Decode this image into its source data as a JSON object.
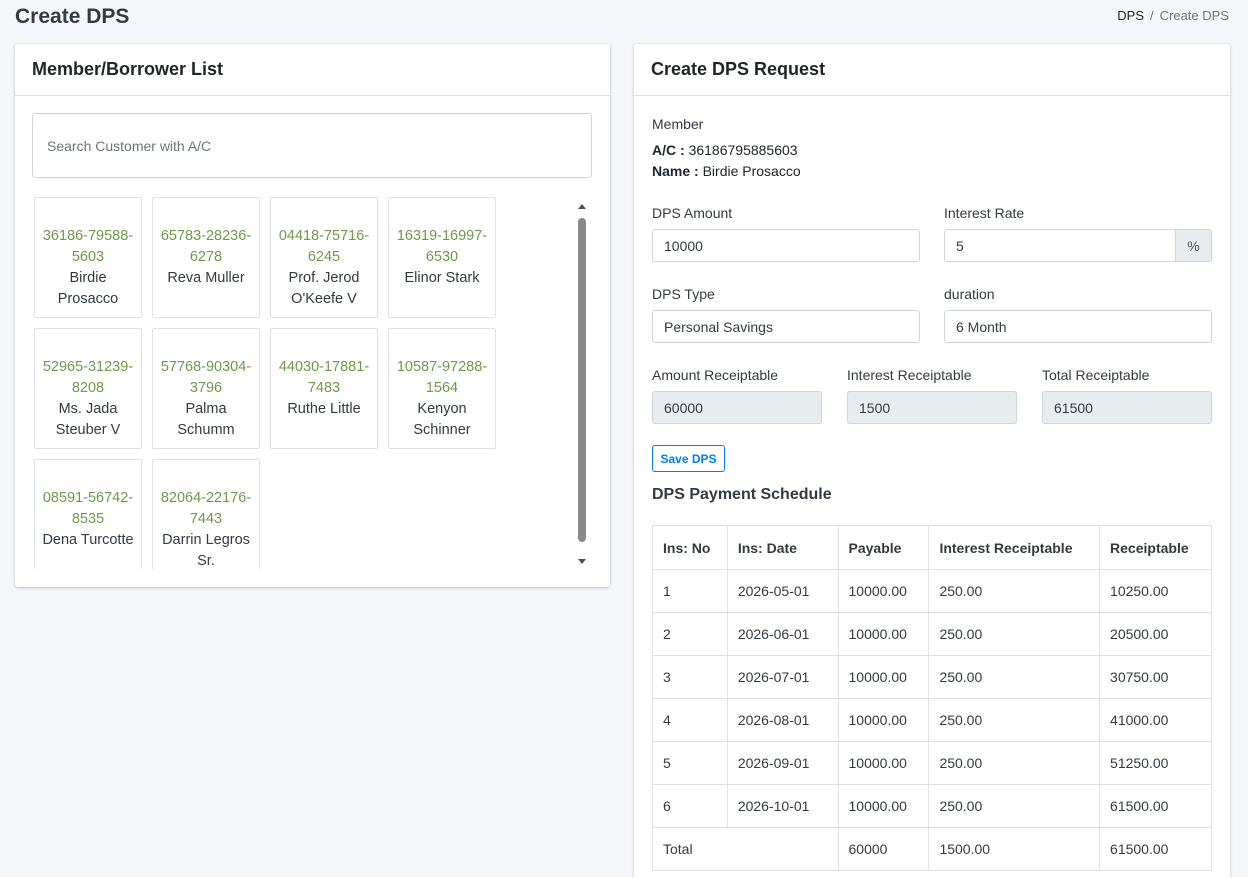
{
  "page": {
    "title": "Create DPS"
  },
  "breadcrumb": {
    "parent": "DPS",
    "separator": "/",
    "current": "Create DPS"
  },
  "member_list": {
    "title": "Member/Borrower List",
    "search_placeholder": "Search Customer with A/C",
    "members": [
      {
        "account": "36186-79588-5603",
        "name": "Birdie Prosacco"
      },
      {
        "account": "65783-28236-6278",
        "name": "Reva Muller"
      },
      {
        "account": "04418-75716-6245",
        "name": "Prof. Jerod O'Keefe V"
      },
      {
        "account": "16319-16997-6530",
        "name": "Elinor Stark"
      },
      {
        "account": "52965-31239-8208",
        "name": "Ms. Jada Steuber V"
      },
      {
        "account": "57768-90304-3796",
        "name": "Palma Schumm"
      },
      {
        "account": "44030-17881-7483",
        "name": "Ruthe Little"
      },
      {
        "account": "10587-97288-1564",
        "name": "Kenyon Schinner"
      },
      {
        "account": "08591-56742-8535",
        "name": "Dena Turcotte"
      },
      {
        "account": "82064-22176-7443",
        "name": "Darrin Legros Sr."
      }
    ]
  },
  "dps_request": {
    "title": "Create DPS Request",
    "member_label": "Member",
    "ac_label": "A/C :",
    "ac_value": "36186795885603",
    "name_label": "Name :",
    "name_value": "Birdie Prosacco",
    "dps_amount_label": "DPS Amount",
    "dps_amount_value": "10000",
    "interest_rate_label": "Interest Rate",
    "interest_rate_value": "5",
    "interest_rate_unit": "%",
    "dps_type_label": "DPS Type",
    "dps_type_value": "Personal Savings",
    "duration_label": "duration",
    "duration_value": "6 Month",
    "amount_receiptable_label": "Amount Receiptable",
    "amount_receiptable_value": "60000",
    "interest_receiptable_label": "Interest Receiptable",
    "interest_receiptable_value": "1500",
    "total_receiptable_label": "Total Receiptable",
    "total_receiptable_value": "61500",
    "save_label": "Save DPS"
  },
  "schedule": {
    "title": "DPS Payment Schedule",
    "headers": [
      "Ins: No",
      "Ins: Date",
      "Payable",
      "Interest Receiptable",
      "Receiptable"
    ],
    "rows": [
      [
        "1",
        "2026-05-01",
        "10000.00",
        "250.00",
        "10250.00"
      ],
      [
        "2",
        "2026-06-01",
        "10000.00",
        "250.00",
        "20500.00"
      ],
      [
        "3",
        "2026-07-01",
        "10000.00",
        "250.00",
        "30750.00"
      ],
      [
        "4",
        "2026-08-01",
        "10000.00",
        "250.00",
        "41000.00"
      ],
      [
        "5",
        "2026-09-01",
        "10000.00",
        "250.00",
        "51250.00"
      ],
      [
        "6",
        "2026-10-01",
        "10000.00",
        "250.00",
        "61500.00"
      ]
    ],
    "total": {
      "label": "Total",
      "payable": "60000",
      "interest": "1500.00",
      "receiptable": "61500.00"
    }
  },
  "icons": {
    "scroll_up": "scroll-up-arrow-icon",
    "scroll_down": "scroll-down-arrow-icon"
  },
  "colors": {
    "account_number": "#6b9a4a",
    "button_primary": "#007bff",
    "readonly_bg": "#e9ecef"
  }
}
